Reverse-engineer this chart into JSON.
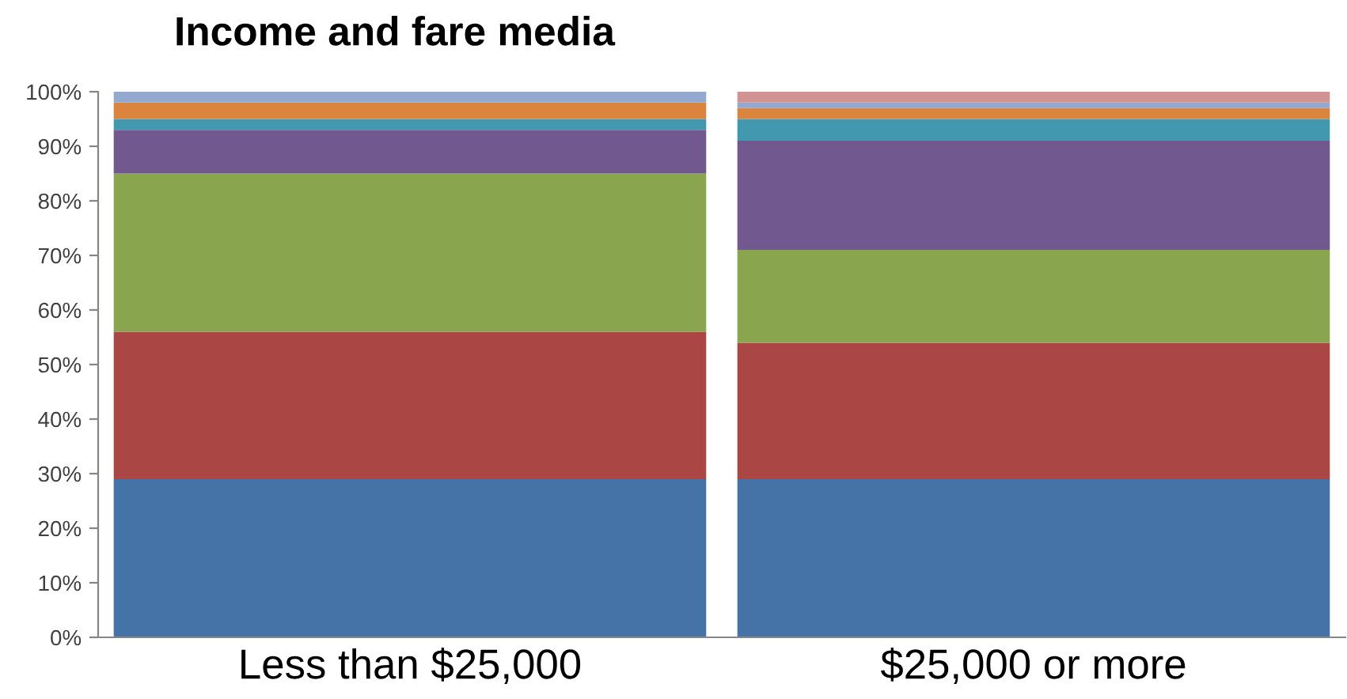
{
  "chart_data": {
    "type": "bar",
    "title": "Income and fare media",
    "stacked": true,
    "categories": [
      "Less than $25,000",
      "$25,000 or more"
    ],
    "series": [
      {
        "color": "#4572a7",
        "values": [
          29,
          29
        ]
      },
      {
        "color": "#aa4643",
        "values": [
          27,
          25
        ]
      },
      {
        "color": "#89a54e",
        "values": [
          29,
          17
        ]
      },
      {
        "color": "#71588f",
        "values": [
          8,
          20
        ]
      },
      {
        "color": "#4198af",
        "values": [
          2,
          4
        ]
      },
      {
        "color": "#db843d",
        "values": [
          3,
          2
        ]
      },
      {
        "color": "#93a9cf",
        "values": [
          2,
          1
        ]
      },
      {
        "color": "#d19392",
        "values": [
          null,
          2
        ]
      }
    ],
    "ylim": [
      0,
      100
    ],
    "yticks": [
      {
        "value": 0,
        "label": "0%"
      },
      {
        "value": 10,
        "label": "10%"
      },
      {
        "value": 20,
        "label": "20%"
      },
      {
        "value": 30,
        "label": "30%"
      },
      {
        "value": 40,
        "label": "40%"
      },
      {
        "value": 50,
        "label": "50%"
      },
      {
        "value": 60,
        "label": "60%"
      },
      {
        "value": 70,
        "label": "70%"
      },
      {
        "value": 80,
        "label": "80%"
      },
      {
        "value": 90,
        "label": "90%"
      },
      {
        "value": 100,
        "label": "100%"
      }
    ],
    "grid": false,
    "legend": false
  }
}
